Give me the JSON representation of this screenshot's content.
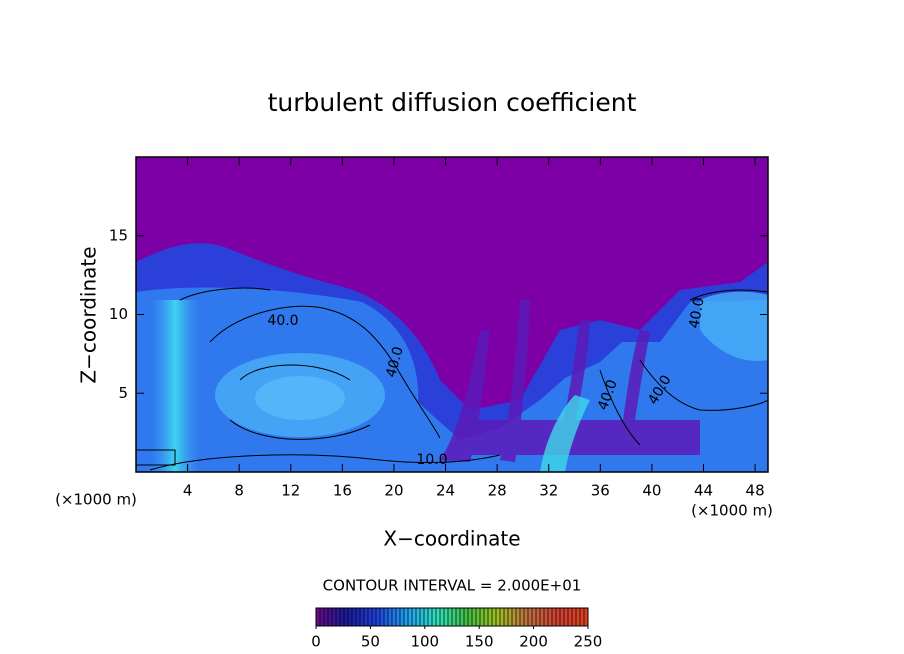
{
  "chart_data": {
    "type": "contour",
    "title": "turbulent diffusion coefficient",
    "x_label": "X−coordinate",
    "y_label": "Z−coordinate",
    "x_unit": "(×1000 m)",
    "y_unit": "(×1000 m)",
    "xlim": [
      0,
      49
    ],
    "xticks": [
      4,
      8,
      12,
      16,
      20,
      24,
      28,
      32,
      36,
      40,
      44,
      48
    ],
    "ylim": [
      0,
      20
    ],
    "yticks": [
      5,
      10,
      15
    ],
    "contour_interval_label": "CONTOUR INTERVAL = 2.000E+01",
    "contour_labels": [
      "40.0",
      "40.0",
      "40.0",
      "40.0",
      "40.0",
      "10.0"
    ],
    "colorbar": {
      "lim": [
        0,
        250
      ],
      "ticks": [
        0,
        50,
        100,
        150,
        200,
        250
      ],
      "colors": [
        "#6a0a8a",
        "#1a1a9a",
        "#2040e0",
        "#20a0f0",
        "#30e0c0",
        "#40c040",
        "#a0c020",
        "#c07040",
        "#d04030",
        "#e04020"
      ]
    }
  }
}
